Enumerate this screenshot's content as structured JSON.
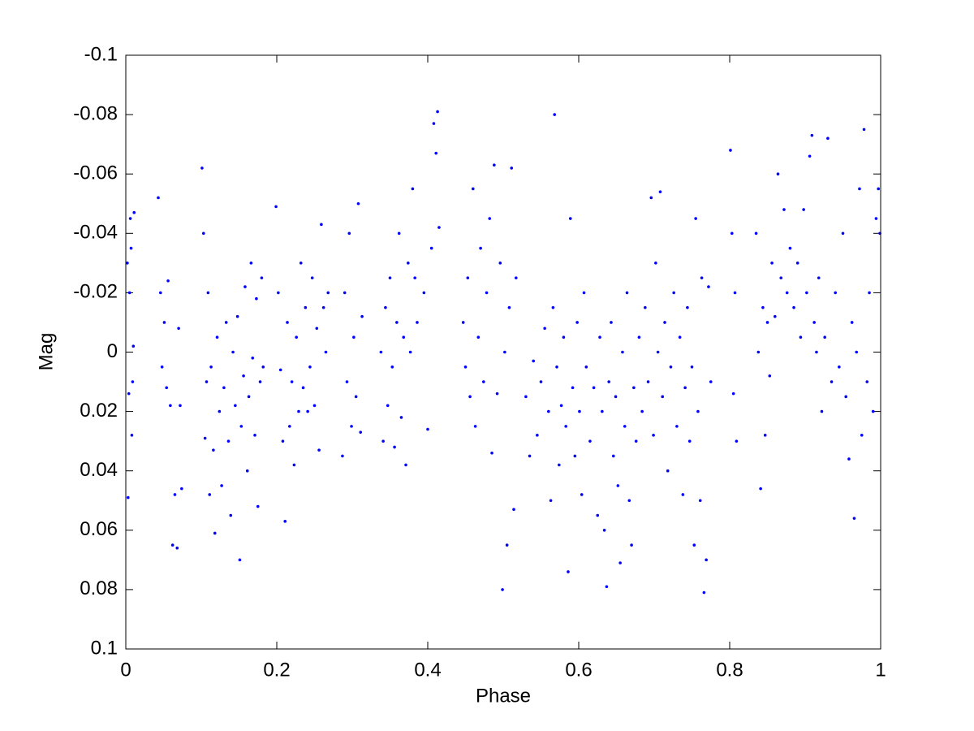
{
  "chart_data": {
    "type": "scatter",
    "xlabel": "Phase",
    "ylabel": "Mag",
    "xlim": [
      0,
      1
    ],
    "ylim": [
      -0.1,
      0.1
    ],
    "y_reversed": true,
    "xticks": [
      0,
      0.2,
      0.4,
      0.6,
      0.8,
      1
    ],
    "yticks": [
      -0.1,
      -0.08,
      -0.06,
      -0.04,
      -0.02,
      0,
      0.02,
      0.04,
      0.06,
      0.08,
      0.1
    ],
    "grid": false,
    "color": "#0000ff",
    "x": [
      0.002,
      0.004,
      0.006,
      0.008,
      0.01,
      0.003,
      0.007,
      0.009,
      0.005,
      0.011,
      0.043,
      0.046,
      0.048,
      0.051,
      0.054,
      0.056,
      0.059,
      0.062,
      0.065,
      0.068,
      0.07,
      0.072,
      0.074,
      0.101,
      0.103,
      0.105,
      0.107,
      0.109,
      0.111,
      0.113,
      0.116,
      0.118,
      0.121,
      0.124,
      0.127,
      0.13,
      0.133,
      0.136,
      0.139,
      0.142,
      0.145,
      0.148,
      0.151,
      0.153,
      0.156,
      0.158,
      0.161,
      0.163,
      0.166,
      0.168,
      0.171,
      0.173,
      0.175,
      0.178,
      0.18,
      0.182,
      0.199,
      0.202,
      0.205,
      0.208,
      0.211,
      0.214,
      0.217,
      0.22,
      0.223,
      0.226,
      0.229,
      0.232,
      0.235,
      0.238,
      0.241,
      0.244,
      0.247,
      0.25,
      0.253,
      0.256,
      0.259,
      0.262,
      0.265,
      0.268,
      0.287,
      0.29,
      0.293,
      0.296,
      0.299,
      0.302,
      0.305,
      0.308,
      0.311,
      0.313,
      0.338,
      0.341,
      0.344,
      0.347,
      0.35,
      0.353,
      0.356,
      0.359,
      0.362,
      0.365,
      0.368,
      0.371,
      0.374,
      0.377,
      0.38,
      0.383,
      0.386,
      0.395,
      0.4,
      0.405,
      0.408,
      0.411,
      0.413,
      0.415,
      0.447,
      0.45,
      0.453,
      0.456,
      0.46,
      0.463,
      0.467,
      0.47,
      0.474,
      0.478,
      0.482,
      0.485,
      0.488,
      0.492,
      0.496,
      0.499,
      0.502,
      0.505,
      0.508,
      0.511,
      0.514,
      0.517,
      0.53,
      0.535,
      0.54,
      0.545,
      0.55,
      0.555,
      0.56,
      0.563,
      0.566,
      0.568,
      0.571,
      0.574,
      0.577,
      0.58,
      0.583,
      0.586,
      0.589,
      0.592,
      0.595,
      0.598,
      0.601,
      0.604,
      0.607,
      0.61,
      0.615,
      0.62,
      0.625,
      0.628,
      0.631,
      0.634,
      0.637,
      0.64,
      0.643,
      0.646,
      0.649,
      0.652,
      0.655,
      0.658,
      0.661,
      0.664,
      0.667,
      0.67,
      0.673,
      0.676,
      0.68,
      0.684,
      0.688,
      0.692,
      0.696,
      0.699,
      0.702,
      0.705,
      0.708,
      0.711,
      0.714,
      0.718,
      0.722,
      0.726,
      0.73,
      0.734,
      0.738,
      0.741,
      0.744,
      0.747,
      0.75,
      0.753,
      0.755,
      0.758,
      0.761,
      0.763,
      0.766,
      0.769,
      0.772,
      0.775,
      0.801,
      0.803,
      0.805,
      0.807,
      0.809,
      0.835,
      0.838,
      0.841,
      0.844,
      0.847,
      0.85,
      0.853,
      0.856,
      0.86,
      0.864,
      0.868,
      0.872,
      0.876,
      0.88,
      0.885,
      0.89,
      0.894,
      0.898,
      0.902,
      0.906,
      0.909,
      0.912,
      0.915,
      0.918,
      0.922,
      0.926,
      0.93,
      0.935,
      0.94,
      0.945,
      0.95,
      0.954,
      0.958,
      0.962,
      0.965,
      0.968,
      0.972,
      0.975,
      0.978,
      0.982,
      0.985,
      0.99,
      0.994,
      0.997,
      0.999
    ],
    "values": [
      -0.03,
      0.014,
      -0.045,
      0.028,
      -0.002,
      0.049,
      -0.035,
      0.01,
      -0.02,
      -0.047,
      -0.052,
      -0.02,
      0.005,
      -0.01,
      0.012,
      -0.024,
      0.018,
      0.065,
      0.048,
      0.066,
      -0.008,
      0.018,
      0.046,
      -0.062,
      -0.04,
      0.029,
      0.01,
      -0.02,
      0.048,
      0.005,
      0.033,
      0.061,
      -0.005,
      0.02,
      0.045,
      0.012,
      -0.01,
      0.03,
      0.055,
      0.0,
      0.018,
      -0.012,
      0.07,
      0.025,
      0.008,
      -0.022,
      0.04,
      0.015,
      -0.03,
      0.002,
      0.028,
      -0.018,
      0.052,
      0.01,
      -0.025,
      0.005,
      -0.049,
      -0.02,
      0.006,
      0.03,
      0.057,
      -0.01,
      0.025,
      0.01,
      0.038,
      -0.005,
      0.02,
      -0.03,
      0.012,
      -0.015,
      0.02,
      0.005,
      -0.025,
      0.018,
      -0.008,
      0.033,
      -0.043,
      -0.015,
      0.0,
      -0.02,
      0.035,
      -0.02,
      0.01,
      -0.04,
      0.025,
      -0.005,
      0.015,
      -0.05,
      0.027,
      -0.012,
      0.0,
      0.03,
      -0.015,
      0.018,
      -0.025,
      0.005,
      0.032,
      -0.01,
      -0.04,
      0.022,
      -0.005,
      0.038,
      -0.03,
      0.0,
      -0.055,
      -0.025,
      -0.01,
      -0.02,
      0.026,
      -0.035,
      -0.077,
      -0.067,
      -0.081,
      -0.042,
      -0.01,
      0.005,
      -0.025,
      0.015,
      -0.055,
      0.025,
      -0.005,
      -0.035,
      0.01,
      -0.02,
      -0.045,
      0.034,
      -0.063,
      0.014,
      -0.03,
      0.08,
      0.0,
      0.065,
      -0.015,
      -0.062,
      0.053,
      -0.025,
      0.015,
      0.035,
      0.003,
      0.028,
      0.01,
      -0.008,
      0.02,
      0.05,
      -0.015,
      -0.08,
      0.005,
      0.038,
      0.018,
      -0.005,
      0.025,
      0.074,
      -0.045,
      0.012,
      0.035,
      -0.01,
      0.02,
      0.048,
      -0.02,
      0.005,
      0.03,
      0.012,
      0.055,
      -0.005,
      0.02,
      0.06,
      0.079,
      0.01,
      -0.01,
      0.035,
      0.015,
      0.045,
      0.071,
      0.0,
      0.025,
      -0.02,
      0.05,
      0.065,
      0.012,
      0.03,
      -0.005,
      0.02,
      -0.015,
      0.01,
      -0.052,
      0.028,
      -0.03,
      0.0,
      -0.054,
      0.015,
      -0.01,
      0.04,
      0.005,
      -0.02,
      0.025,
      -0.005,
      0.048,
      0.012,
      -0.015,
      0.03,
      0.005,
      0.065,
      -0.045,
      0.02,
      0.05,
      -0.025,
      0.081,
      0.07,
      -0.022,
      0.01,
      -0.068,
      -0.04,
      0.014,
      -0.02,
      0.03,
      -0.04,
      0.0,
      0.046,
      -0.015,
      0.028,
      -0.01,
      0.008,
      -0.03,
      -0.012,
      -0.06,
      -0.025,
      -0.048,
      -0.02,
      -0.035,
      -0.015,
      -0.03,
      -0.005,
      -0.048,
      -0.02,
      -0.066,
      -0.073,
      -0.01,
      0.0,
      -0.025,
      0.02,
      -0.005,
      -0.072,
      0.01,
      -0.02,
      0.005,
      -0.04,
      0.015,
      0.036,
      -0.01,
      0.056,
      0.0,
      -0.055,
      0.028,
      -0.075,
      0.01,
      -0.02,
      0.02,
      -0.045,
      -0.055,
      -0.04
    ]
  }
}
